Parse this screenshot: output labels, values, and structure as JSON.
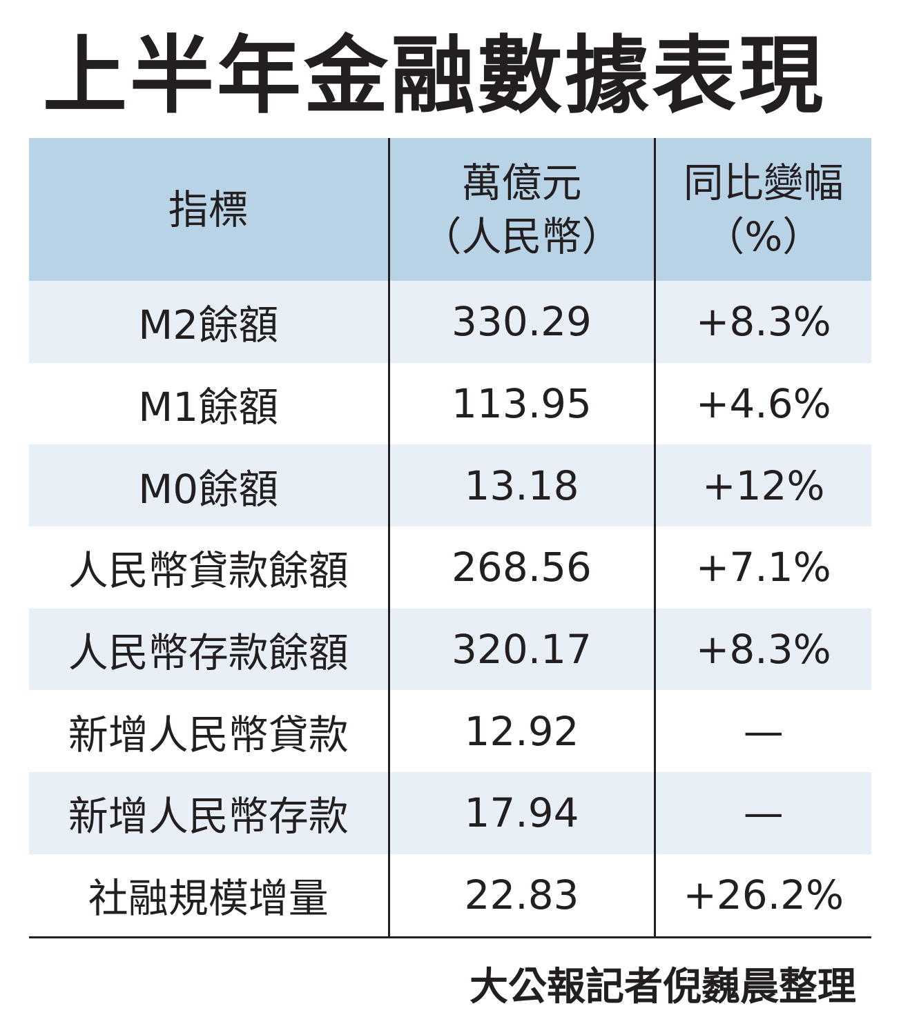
{
  "title": "上半年金融數據表現",
  "table": {
    "header": [
      [
        "指標"
      ],
      [
        "萬億元",
        "（人民幣）"
      ],
      [
        "同比變幅",
        "（%）"
      ]
    ],
    "rows": [
      [
        "M2餘額",
        "330.29",
        "+8.3%"
      ],
      [
        "M1餘額",
        "113.95",
        "+4.6%"
      ],
      [
        "M0餘額",
        "13.18",
        "+12%"
      ],
      [
        "人民幣貸款餘額",
        "268.56",
        "+7.1%"
      ],
      [
        "人民幣存款餘額",
        "320.17",
        "+8.3%"
      ],
      [
        "新增人民幣貸款",
        "12.92",
        "—"
      ],
      [
        "新增人民幣存款",
        "17.94",
        "—"
      ],
      [
        "社融規模增量",
        "22.83",
        "+26.2%"
      ]
    ]
  },
  "source": "大公報記者倪巍晨整理"
}
